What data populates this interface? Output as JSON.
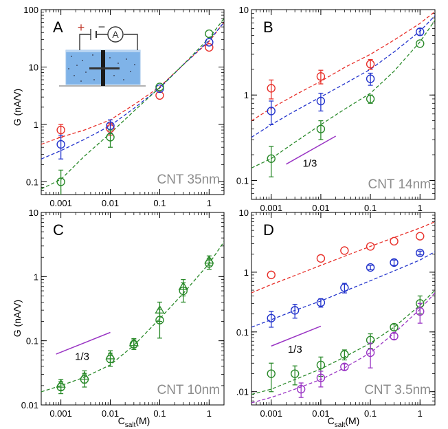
{
  "figure": {
    "ylabel_top": "G (nA/V)",
    "ylabel_bottom": "G (nA/V)",
    "xlabel_left": {
      "main": "C",
      "sub": "salt",
      "unit": "(M)"
    },
    "xlabel_right": {
      "main": "C",
      "sub": "salt",
      "unit": "(M)"
    }
  },
  "chart_data": [
    {
      "panel": "A",
      "type": "scatter",
      "label": "CNT 35nm",
      "xscale": "log",
      "yscale": "log",
      "xlim": [
        0.0004,
        2
      ],
      "ylim": [
        0.06,
        100
      ],
      "xticks": [
        0.001,
        0.01,
        0.1,
        1
      ],
      "xticklabels": [
        "0.001",
        "0.01",
        "0.1",
        "1"
      ],
      "yticks": [
        0.1,
        1,
        10,
        100
      ],
      "yticklabels": [
        "0.1",
        "1",
        "10",
        "100"
      ],
      "inset": {
        "plus": "+",
        "minus": "−",
        "meter": "A"
      },
      "series": [
        {
          "color": "#e8302a",
          "marker": "circle",
          "x": [
            0.001,
            0.01,
            0.1,
            1
          ],
          "y": [
            0.8,
            0.85,
            3.2,
            22
          ],
          "err": [
            0.2,
            0.2,
            0,
            0
          ],
          "fit_x": [
            0.0004,
            0.001,
            0.003,
            0.01,
            0.03,
            0.1,
            0.3,
            1,
            2
          ],
          "fit_y": [
            0.45,
            0.6,
            0.8,
            1.2,
            2.2,
            4.5,
            11,
            28,
            60
          ]
        },
        {
          "color": "#2233cc",
          "marker": "circle",
          "x": [
            0.001,
            0.01,
            0.1,
            1
          ],
          "y": [
            0.45,
            0.95,
            4.2,
            27
          ],
          "err": [
            0.2,
            0.25,
            0,
            0
          ],
          "fit_x": [
            0.0004,
            0.001,
            0.003,
            0.01,
            0.03,
            0.1,
            0.3,
            1,
            2
          ],
          "fit_y": [
            0.25,
            0.35,
            0.55,
            0.95,
            1.9,
            4.3,
            11,
            29,
            60
          ]
        },
        {
          "color": "#2a8a2a",
          "marker": "circle",
          "x": [
            0.001,
            0.01,
            0.1,
            1
          ],
          "y": [
            0.1,
            0.6,
            4.5,
            38
          ],
          "err": [
            0.06,
            0.2,
            0,
            0
          ],
          "fit_x": [
            0.0004,
            0.001,
            0.003,
            0.01,
            0.03,
            0.1,
            0.3,
            1,
            2
          ],
          "fit_y": [
            0.075,
            0.11,
            0.28,
            0.7,
            1.7,
            4.4,
            11,
            32,
            70
          ]
        }
      ]
    },
    {
      "panel": "B",
      "type": "scatter",
      "label": "CNT 14nm",
      "xscale": "log",
      "yscale": "log",
      "xlim": [
        0.0004,
        2
      ],
      "ylim": [
        0.06,
        10
      ],
      "xticks": [
        0.001,
        0.01,
        0.1,
        1
      ],
      "xticklabels": [
        "0.001",
        "0.01",
        "0.1",
        "1"
      ],
      "yticks": [
        0.1,
        1,
        10
      ],
      "yticklabels": [
        "0.1",
        "1",
        "10"
      ],
      "slope_label": "1/3",
      "slope_line": {
        "x": [
          0.002,
          0.02
        ],
        "y": [
          0.155,
          0.33
        ]
      },
      "series": [
        {
          "color": "#e8302a",
          "marker": "circle",
          "x": [
            0.001,
            0.01,
            0.1
          ],
          "y": [
            1.2,
            1.65,
            2.3
          ],
          "err": [
            0.3,
            0.3,
            0.3
          ],
          "fit_x": [
            0.0004,
            0.001,
            0.003,
            0.01,
            0.03,
            0.1,
            0.3,
            1,
            2
          ],
          "fit_y": [
            0.5,
            0.7,
            1.0,
            1.45,
            2.1,
            3.0,
            4.4,
            6.9,
            9.5
          ]
        },
        {
          "color": "#2233cc",
          "marker": "circle",
          "x": [
            0.001,
            0.01,
            0.1,
            1
          ],
          "y": [
            0.65,
            0.85,
            1.55,
            5.5
          ],
          "err": [
            0.2,
            0.2,
            0.25,
            0.5
          ],
          "fit_x": [
            0.0004,
            0.001,
            0.003,
            0.01,
            0.03,
            0.1,
            0.3,
            1,
            2
          ],
          "fit_y": [
            0.32,
            0.45,
            0.65,
            0.95,
            1.35,
            2.0,
            3.2,
            5.6,
            8.5
          ]
        },
        {
          "color": "#2a8a2a",
          "marker": "circle",
          "x": [
            0.001,
            0.01,
            0.1,
            1
          ],
          "y": [
            0.18,
            0.4,
            0.9,
            4.0
          ],
          "err": [
            0.07,
            0.1,
            0.1,
            0
          ],
          "fit_x": [
            0.0004,
            0.001,
            0.003,
            0.01,
            0.03,
            0.1,
            0.3,
            1,
            2
          ],
          "fit_y": [
            0.14,
            0.18,
            0.28,
            0.45,
            0.68,
            1.05,
            1.9,
            4.2,
            7.5
          ]
        }
      ]
    },
    {
      "panel": "C",
      "type": "scatter",
      "label": "CNT 10nm",
      "xscale": "log",
      "yscale": "log",
      "xlim": [
        0.0004,
        2
      ],
      "ylim": [
        0.01,
        10
      ],
      "xticks": [
        0.001,
        0.01,
        0.1,
        1
      ],
      "xticklabels": [
        "0.001",
        "0.01",
        "0.1",
        "1"
      ],
      "yticks": [
        0.01,
        0.1,
        1,
        10
      ],
      "yticklabels": [
        "0.01",
        "0.1",
        "1",
        "10"
      ],
      "slope_label": "1/3",
      "slope_line": {
        "x": [
          0.0008,
          0.01
        ],
        "y": [
          0.062,
          0.135
        ]
      },
      "series": [
        {
          "color": "#2a8a2a",
          "marker": "circle",
          "x": [
            0.001,
            0.003,
            0.01,
            0.03,
            0.1,
            0.3,
            1
          ],
          "y": [
            0.019,
            0.025,
            0.052,
            0.088,
            0.21,
            0.6,
            1.6
          ],
          "err": [
            0.004,
            0.006,
            0.012,
            0.015,
            0.1,
            0.2,
            0.3
          ],
          "fit_x": [
            0.0004,
            0.001,
            0.003,
            0.01,
            0.03,
            0.1,
            0.3,
            1,
            2
          ],
          "fit_y": [
            0.016,
            0.02,
            0.027,
            0.042,
            0.085,
            0.22,
            0.55,
            1.6,
            3.5
          ]
        },
        {
          "color": "#2a8a2a",
          "marker": "triangle",
          "x": [
            0.001,
            0.003,
            0.01,
            0.03,
            0.1,
            0.3,
            1
          ],
          "y": [
            0.021,
            0.028,
            0.058,
            0.093,
            0.3,
            0.7,
            1.8
          ],
          "err": [
            0.004,
            0.006,
            0.012,
            0.015,
            0.1,
            0.2,
            0.3
          ]
        }
      ]
    },
    {
      "panel": "D",
      "type": "scatter",
      "label": "CNT 3.5nm",
      "xscale": "log",
      "yscale": "log",
      "xlim": [
        0.0004,
        2
      ],
      "ylim": [
        0.006,
        10
      ],
      "xticks": [
        0.001,
        0.01,
        0.1,
        1
      ],
      "xticklabels": [
        "0.001",
        "0.01",
        "0.1",
        "1"
      ],
      "yticks": [
        0.01,
        0.1,
        1,
        10
      ],
      "yticklabels": [
        ".01",
        "0.1",
        "1",
        "10"
      ],
      "slope_label": "1/3",
      "slope_line": {
        "x": [
          0.001,
          0.01
        ],
        "y": [
          0.058,
          0.125
        ]
      },
      "series": [
        {
          "color": "#e8302a",
          "marker": "circle",
          "x": [
            0.001,
            0.01,
            0.03,
            0.1,
            0.3,
            1
          ],
          "y": [
            0.9,
            1.7,
            2.3,
            2.7,
            3.3,
            4.0
          ],
          "err": [
            0,
            0,
            0,
            0,
            0,
            0
          ],
          "fit_x": [
            0.0004,
            0.001,
            0.003,
            0.01,
            0.03,
            0.1,
            0.3,
            1,
            2
          ],
          "fit_y": [
            0.45,
            0.62,
            0.88,
            1.3,
            1.85,
            2.7,
            3.8,
            5.5,
            7.0
          ]
        },
        {
          "color": "#2233cc",
          "marker": "circle",
          "x": [
            0.001,
            0.003,
            0.01,
            0.03,
            0.1,
            0.3,
            1
          ],
          "y": [
            0.17,
            0.23,
            0.31,
            0.55,
            1.2,
            1.45,
            2.1
          ],
          "err": [
            0.05,
            0.06,
            0.05,
            0.1,
            0.1,
            0.15,
            0.15
          ],
          "fit_x": [
            0.0004,
            0.001,
            0.003,
            0.01,
            0.03,
            0.1,
            0.3,
            1,
            2
          ],
          "fit_y": [
            0.12,
            0.16,
            0.23,
            0.33,
            0.48,
            0.72,
            1.05,
            1.6,
            2.2
          ]
        },
        {
          "color": "#2a8a2a",
          "marker": "circle",
          "x": [
            0.001,
            0.003,
            0.01,
            0.03,
            0.1,
            0.3,
            1
          ],
          "y": [
            0.02,
            0.02,
            0.028,
            0.042,
            0.073,
            0.12,
            0.3
          ],
          "err": [
            0.01,
            0.007,
            0.01,
            0.008,
            0.02,
            0.015,
            0.1
          ],
          "fit_x": [
            0.0004,
            0.001,
            0.003,
            0.01,
            0.03,
            0.1,
            0.3,
            1,
            2
          ],
          "fit_y": [
            0.009,
            0.011,
            0.016,
            0.024,
            0.038,
            0.065,
            0.12,
            0.28,
            0.5
          ]
        },
        {
          "color": "#9a35c4",
          "marker": "circle",
          "x": [
            0.004,
            0.01,
            0.03,
            0.1,
            0.3,
            1
          ],
          "y": [
            0.011,
            0.017,
            0.026,
            0.045,
            0.085,
            0.22
          ],
          "err": [
            0.003,
            0.005,
            0.003,
            0.02,
            0.01,
            0.08
          ],
          "fit_x": [
            0.0004,
            0.001,
            0.003,
            0.01,
            0.03,
            0.1,
            0.3,
            1,
            2
          ],
          "fit_y": [
            0.0065,
            0.008,
            0.011,
            0.016,
            0.025,
            0.045,
            0.095,
            0.24,
            0.45
          ]
        }
      ]
    }
  ]
}
